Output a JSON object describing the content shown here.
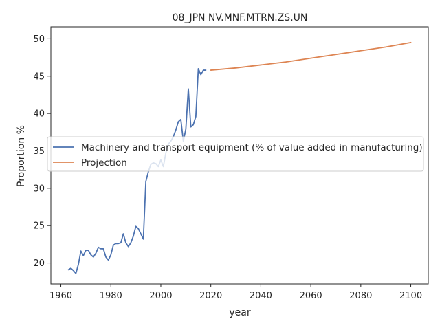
{
  "chart_data": {
    "type": "line",
    "title": "08_JPN NV.MNF.MTRN.ZS.UN",
    "xlabel": "year",
    "ylabel": "Proportion %",
    "xlim": [
      1956,
      2107
    ],
    "ylim": [
      17.2,
      51.6
    ],
    "xticks": [
      1960,
      1980,
      2000,
      2020,
      2040,
      2060,
      2080,
      2100
    ],
    "yticks": [
      20,
      25,
      30,
      35,
      40,
      45,
      50
    ],
    "grid": false,
    "legend_position": "center-left",
    "series": [
      {
        "name": "Machinery and transport equipment (% of value added in manufacturing)",
        "color": "#4c72b0",
        "x": [
          1963,
          1964,
          1965,
          1966,
          1967,
          1968,
          1969,
          1970,
          1971,
          1972,
          1973,
          1974,
          1975,
          1976,
          1977,
          1978,
          1979,
          1980,
          1981,
          1982,
          1983,
          1984,
          1985,
          1986,
          1987,
          1988,
          1989,
          1990,
          1991,
          1992,
          1993,
          1994,
          1995,
          1996,
          1997,
          1998,
          1999,
          2000,
          2001,
          2002,
          2003,
          2004,
          2005,
          2006,
          2007,
          2008,
          2009,
          2010,
          2011,
          2012,
          2013,
          2014,
          2015,
          2016,
          2017,
          2018
        ],
        "y": [
          19.1,
          19.3,
          19.0,
          18.6,
          19.8,
          21.6,
          21.0,
          21.7,
          21.7,
          21.1,
          20.8,
          21.3,
          22.1,
          21.9,
          21.9,
          20.8,
          20.4,
          21.1,
          22.4,
          22.6,
          22.6,
          22.7,
          23.9,
          22.7,
          22.2,
          22.7,
          23.6,
          24.9,
          24.6,
          23.9,
          23.2,
          30.9,
          32.2,
          33.2,
          33.4,
          33.3,
          32.9,
          33.8,
          32.9,
          34.7,
          35.9,
          36.3,
          36.9,
          37.8,
          38.9,
          39.2,
          36.3,
          37.9,
          43.3,
          38.2,
          38.5,
          39.6,
          46.0,
          45.2,
          45.8,
          45.8
        ]
      },
      {
        "name": "Projection",
        "color": "#dd8452",
        "x": [
          2020,
          2030,
          2040,
          2050,
          2060,
          2070,
          2080,
          2090,
          2100
        ],
        "y": [
          45.8,
          46.1,
          46.5,
          46.9,
          47.4,
          47.9,
          48.4,
          48.9,
          49.5
        ]
      }
    ]
  }
}
